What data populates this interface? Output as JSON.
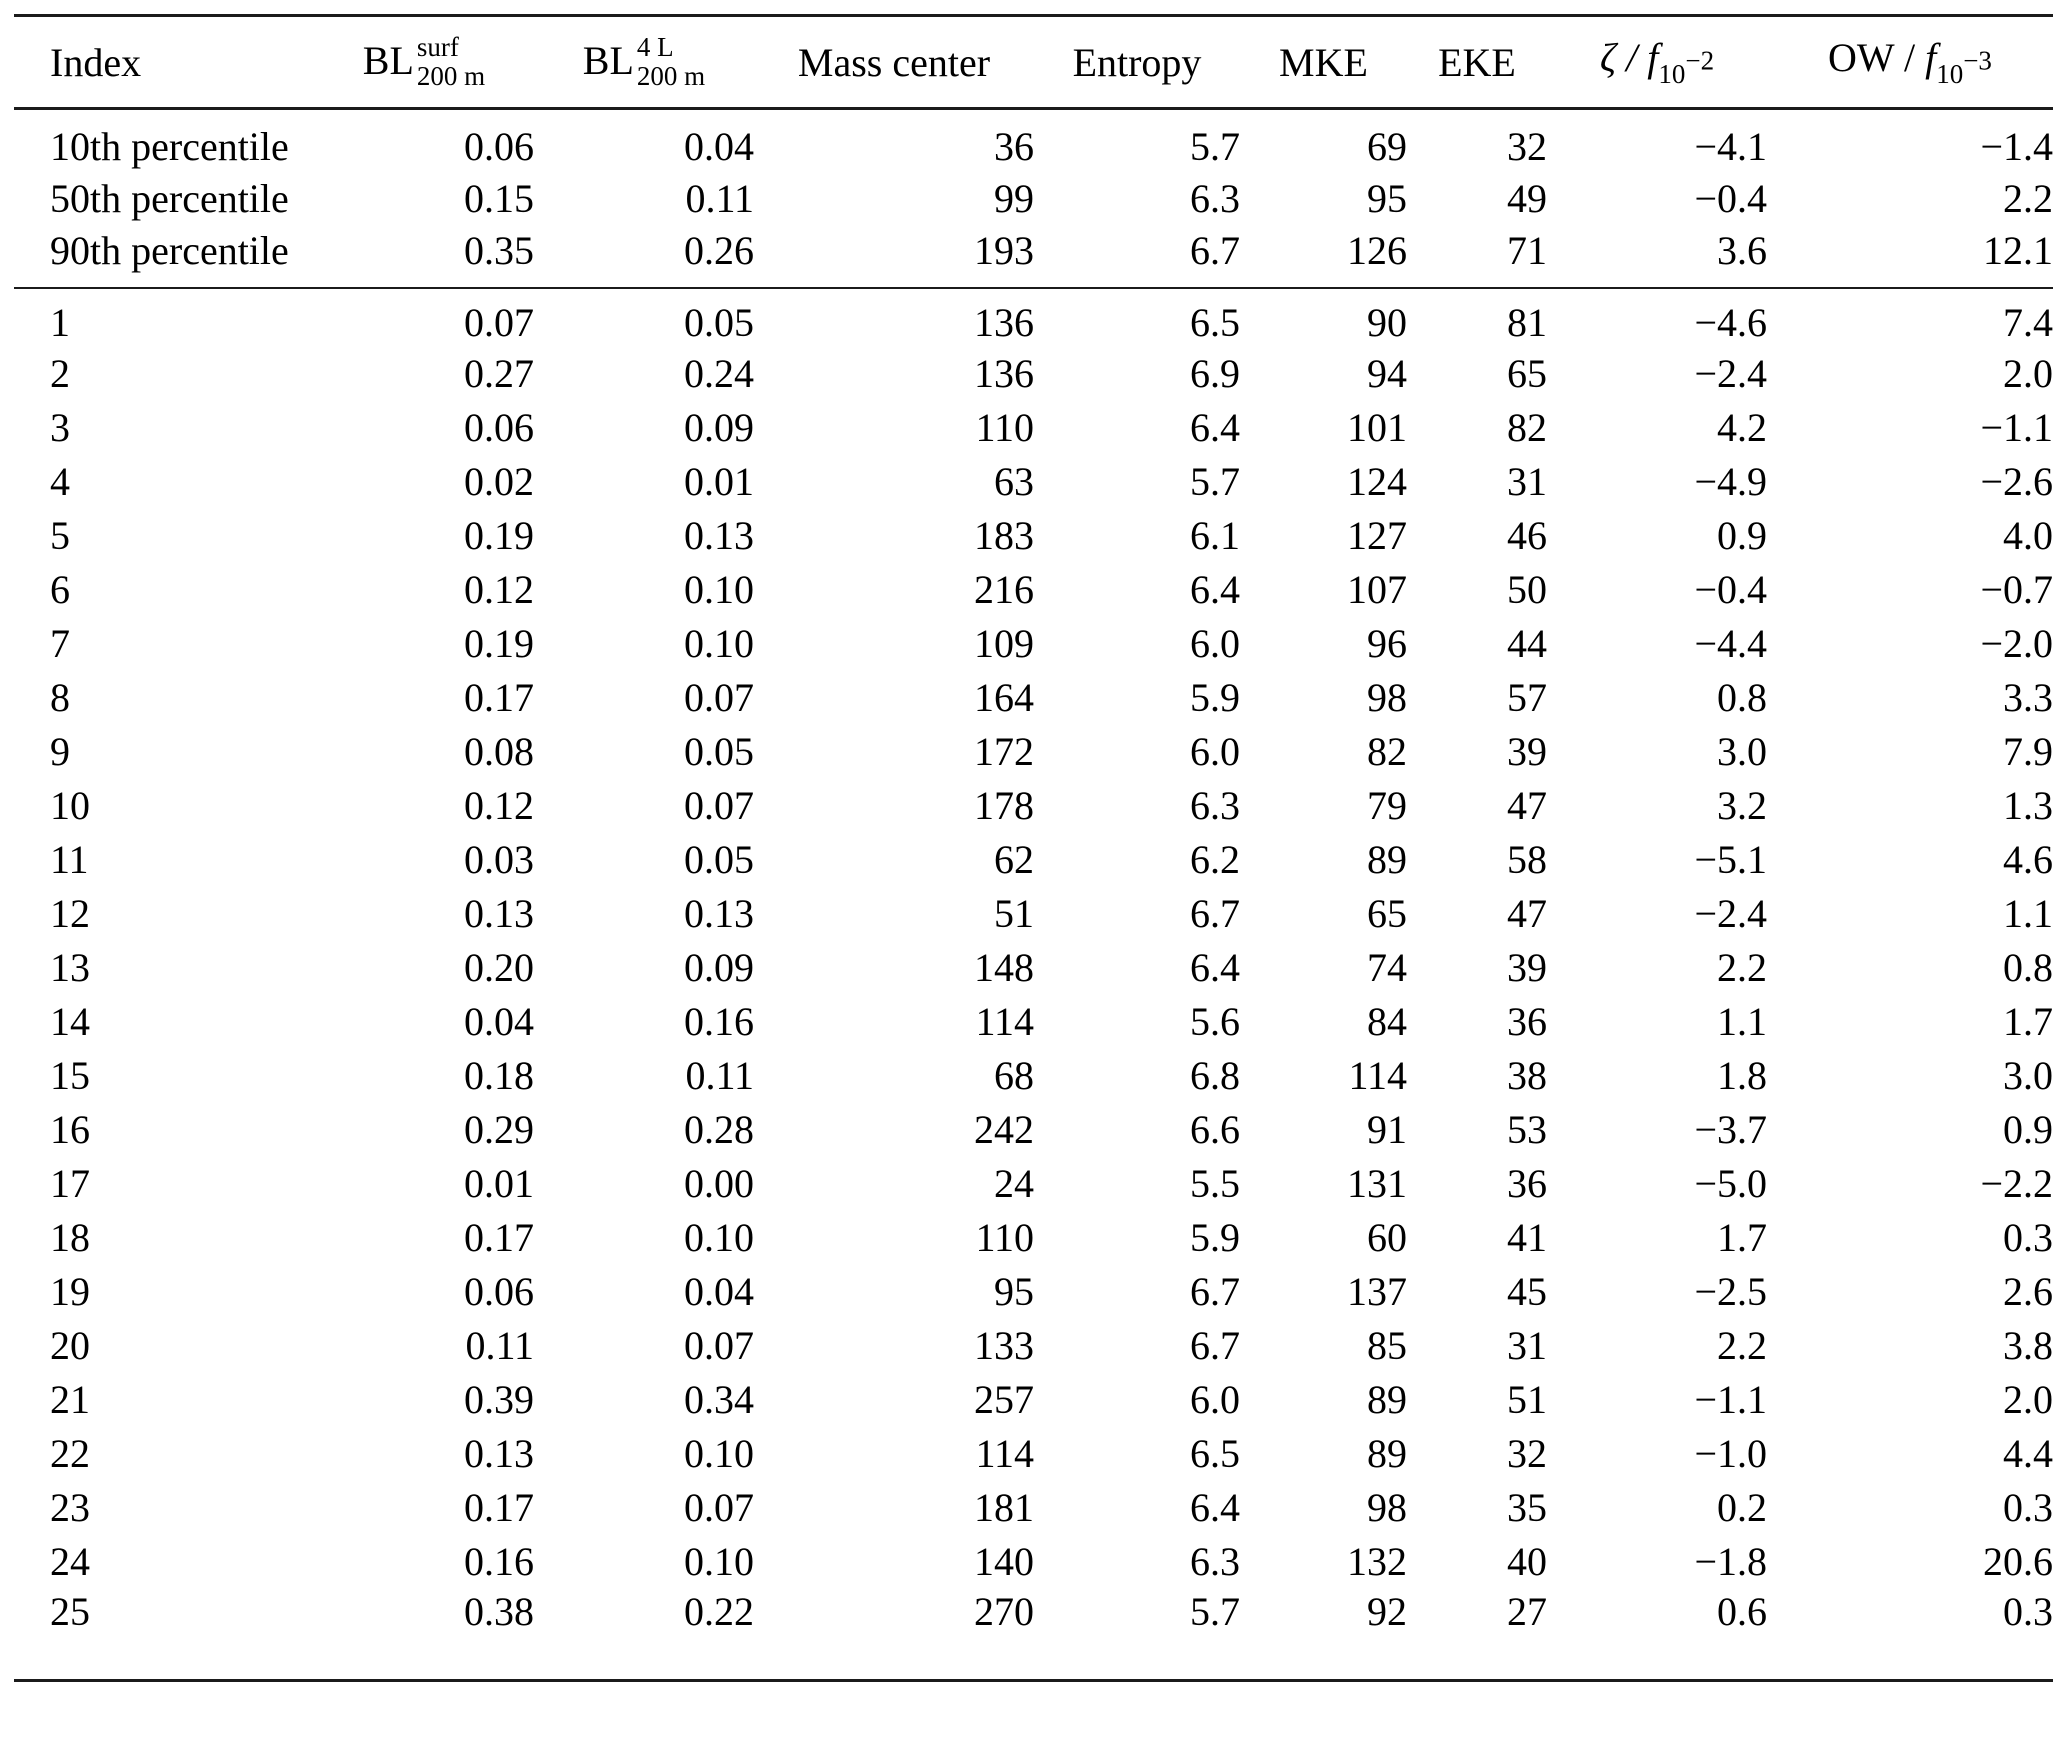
{
  "table": {
    "columns": [
      {
        "label": "Index"
      },
      {
        "base": "BL",
        "sup": "surf",
        "sub": "200 m"
      },
      {
        "base": "BL",
        "sup": "4 L",
        "sub": "200 m"
      },
      {
        "label": "Mass center"
      },
      {
        "label": "Entropy"
      },
      {
        "label": "MKE"
      },
      {
        "label": "EKE"
      },
      {
        "head_roman": "",
        "head_italic": "ζ / f",
        "sub_base": "10",
        "sub_exp": "−2"
      },
      {
        "head_roman": "OW / ",
        "head_italic": "f",
        "sub_base": "10",
        "sub_exp": "−3"
      }
    ],
    "percentile_rows": [
      {
        "index": "10th percentile",
        "values": [
          "0.06",
          "0.04",
          "36",
          "5.7",
          "69",
          "32",
          "−4.1",
          "−1.4"
        ]
      },
      {
        "index": "50th percentile",
        "values": [
          "0.15",
          "0.11",
          "99",
          "6.3",
          "95",
          "49",
          "−0.4",
          "2.2"
        ]
      },
      {
        "index": "90th percentile",
        "values": [
          "0.35",
          "0.26",
          "193",
          "6.7",
          "126",
          "71",
          "3.6",
          "12.1"
        ]
      }
    ],
    "rows": [
      {
        "index": "1",
        "values": [
          "0.07",
          "0.05",
          "136",
          "6.5",
          "90",
          "81",
          "−4.6",
          "7.4"
        ]
      },
      {
        "index": "2",
        "values": [
          "0.27",
          "0.24",
          "136",
          "6.9",
          "94",
          "65",
          "−2.4",
          "2.0"
        ]
      },
      {
        "index": "3",
        "values": [
          "0.06",
          "0.09",
          "110",
          "6.4",
          "101",
          "82",
          "4.2",
          "−1.1"
        ]
      },
      {
        "index": "4",
        "values": [
          "0.02",
          "0.01",
          "63",
          "5.7",
          "124",
          "31",
          "−4.9",
          "−2.6"
        ]
      },
      {
        "index": "5",
        "values": [
          "0.19",
          "0.13",
          "183",
          "6.1",
          "127",
          "46",
          "0.9",
          "4.0"
        ]
      },
      {
        "index": "6",
        "values": [
          "0.12",
          "0.10",
          "216",
          "6.4",
          "107",
          "50",
          "−0.4",
          "−0.7"
        ]
      },
      {
        "index": "7",
        "values": [
          "0.19",
          "0.10",
          "109",
          "6.0",
          "96",
          "44",
          "−4.4",
          "−2.0"
        ]
      },
      {
        "index": "8",
        "values": [
          "0.17",
          "0.07",
          "164",
          "5.9",
          "98",
          "57",
          "0.8",
          "3.3"
        ]
      },
      {
        "index": "9",
        "values": [
          "0.08",
          "0.05",
          "172",
          "6.0",
          "82",
          "39",
          "3.0",
          "7.9"
        ]
      },
      {
        "index": "10",
        "values": [
          "0.12",
          "0.07",
          "178",
          "6.3",
          "79",
          "47",
          "3.2",
          "1.3"
        ]
      },
      {
        "index": "11",
        "values": [
          "0.03",
          "0.05",
          "62",
          "6.2",
          "89",
          "58",
          "−5.1",
          "4.6"
        ]
      },
      {
        "index": "12",
        "values": [
          "0.13",
          "0.13",
          "51",
          "6.7",
          "65",
          "47",
          "−2.4",
          "1.1"
        ]
      },
      {
        "index": "13",
        "values": [
          "0.20",
          "0.09",
          "148",
          "6.4",
          "74",
          "39",
          "2.2",
          "0.8"
        ]
      },
      {
        "index": "14",
        "values": [
          "0.04",
          "0.16",
          "114",
          "5.6",
          "84",
          "36",
          "1.1",
          "1.7"
        ]
      },
      {
        "index": "15",
        "values": [
          "0.18",
          "0.11",
          "68",
          "6.8",
          "114",
          "38",
          "1.8",
          "3.0"
        ]
      },
      {
        "index": "16",
        "values": [
          "0.29",
          "0.28",
          "242",
          "6.6",
          "91",
          "53",
          "−3.7",
          "0.9"
        ]
      },
      {
        "index": "17",
        "values": [
          "0.01",
          "0.00",
          "24",
          "5.5",
          "131",
          "36",
          "−5.0",
          "−2.2"
        ]
      },
      {
        "index": "18",
        "values": [
          "0.17",
          "0.10",
          "110",
          "5.9",
          "60",
          "41",
          "1.7",
          "0.3"
        ]
      },
      {
        "index": "19",
        "values": [
          "0.06",
          "0.04",
          "95",
          "6.7",
          "137",
          "45",
          "−2.5",
          "2.6"
        ]
      },
      {
        "index": "20",
        "values": [
          "0.11",
          "0.07",
          "133",
          "6.7",
          "85",
          "31",
          "2.2",
          "3.8"
        ]
      },
      {
        "index": "21",
        "values": [
          "0.39",
          "0.34",
          "257",
          "6.0",
          "89",
          "51",
          "−1.1",
          "2.0"
        ]
      },
      {
        "index": "22",
        "values": [
          "0.13",
          "0.10",
          "114",
          "6.5",
          "89",
          "32",
          "−1.0",
          "4.4"
        ]
      },
      {
        "index": "23",
        "values": [
          "0.17",
          "0.07",
          "181",
          "6.4",
          "98",
          "35",
          "0.2",
          "0.3"
        ]
      },
      {
        "index": "24",
        "values": [
          "0.16",
          "0.10",
          "140",
          "6.3",
          "132",
          "40",
          "−1.8",
          "20.6"
        ]
      },
      {
        "index": "25",
        "values": [
          "0.38",
          "0.22",
          "270",
          "5.7",
          "92",
          "27",
          "0.6",
          "0.3"
        ]
      }
    ]
  },
  "colors": {
    "text": "#000000",
    "rule": "#1b1b1b",
    "background": "#ffffff"
  }
}
